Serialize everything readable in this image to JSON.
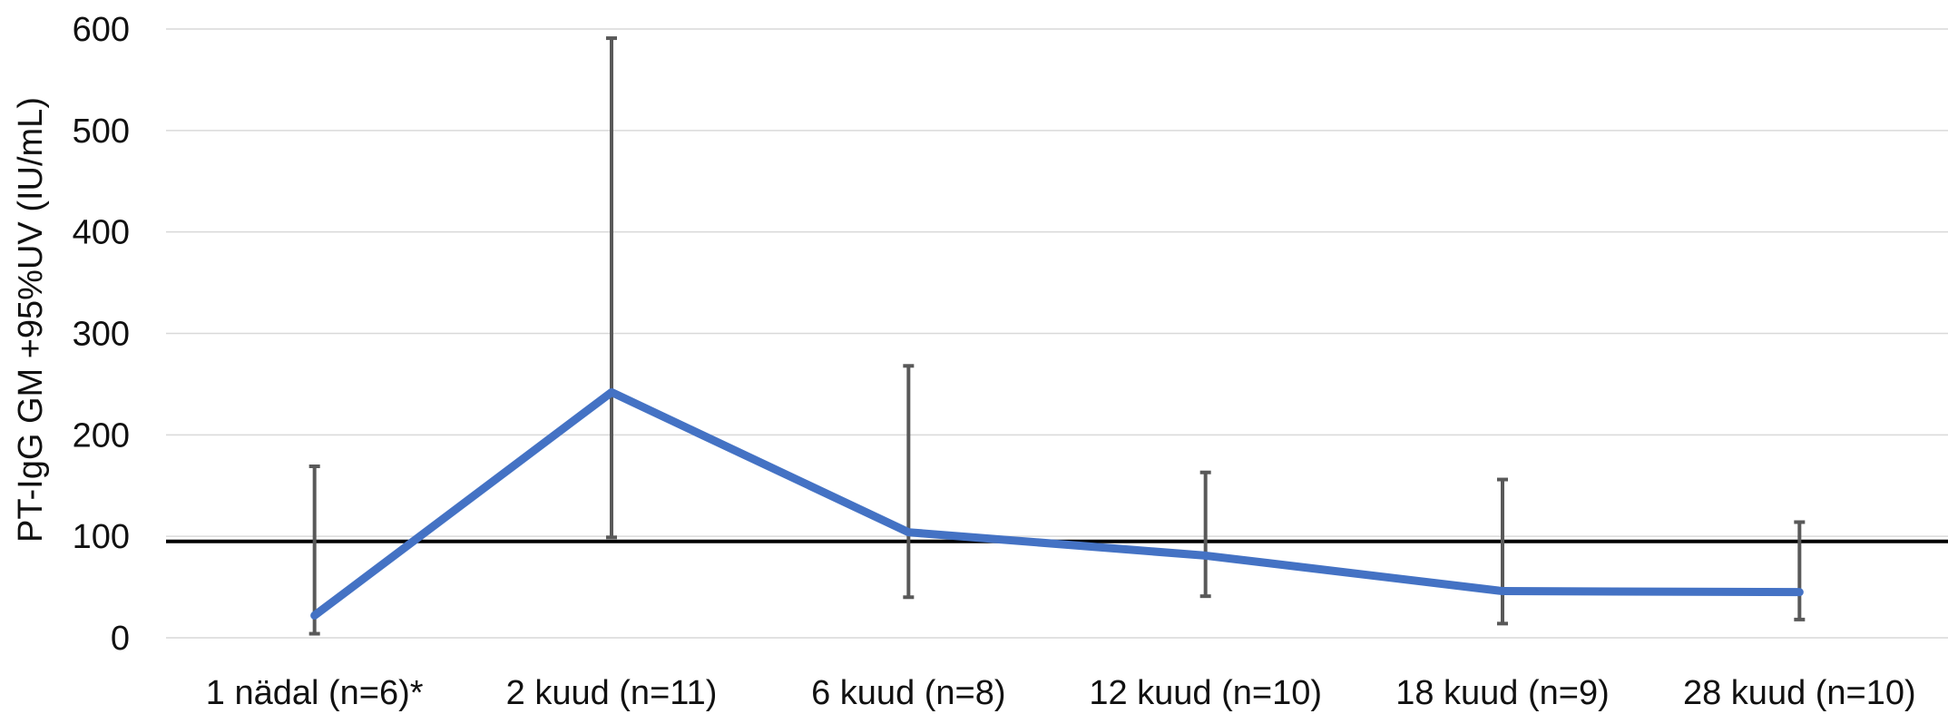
{
  "chart_data": {
    "type": "line",
    "title": "",
    "xlabel": "",
    "ylabel": "PT-IgG GM +95%UV (IU/mL)",
    "ylim": [
      0,
      600
    ],
    "yticks": [
      0,
      100,
      200,
      300,
      400,
      500,
      600
    ],
    "grid": true,
    "legend": "none",
    "categories": [
      "1 nädal (n=6)*",
      "2 kuud (n=11)",
      "6 kuud (n=8)",
      "12 kuud (n=10)",
      "18 kuud (n=9)",
      "28 kuud (n=10)"
    ],
    "series": [
      {
        "values": [
          22,
          242,
          104,
          81,
          46,
          45
        ],
        "error_low": [
          4,
          99,
          40,
          41,
          14,
          18
        ],
        "error_high": [
          169,
          591,
          268,
          163,
          156,
          114
        ],
        "color": "#4472C4"
      }
    ],
    "reference_line": {
      "value": 95,
      "color": "#000000"
    },
    "error_bar_color": "#595959",
    "grid_color": "#D9D9D9"
  }
}
